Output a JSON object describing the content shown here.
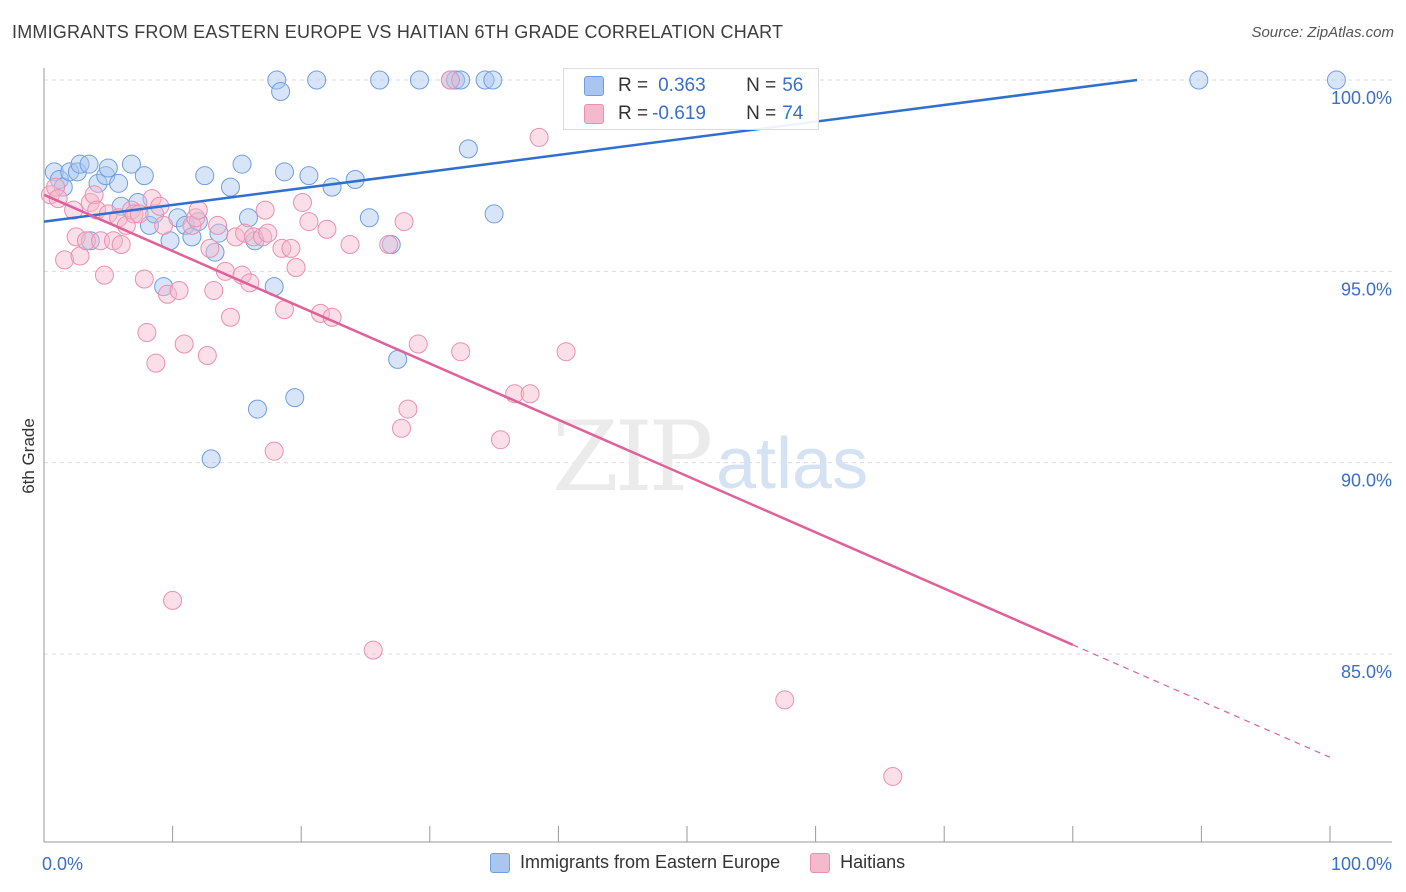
{
  "title": "IMMIGRANTS FROM EASTERN EUROPE VS HAITIAN 6TH GRADE CORRELATION CHART",
  "source": "Source: ZipAtlas.com",
  "watermark": {
    "zip": "ZIP",
    "atlas": "atlas"
  },
  "stats_box": {
    "rows": [
      {
        "r_label": "R = ",
        "r_value": "0.363",
        "n_label": "N = ",
        "n_value": "56",
        "color": "#a9c6f0"
      },
      {
        "r_label": "R = ",
        "r_value": "-0.619",
        "n_label": "N = ",
        "n_value": "74",
        "color": "#f5b9cc"
      }
    ]
  },
  "legend": [
    {
      "label": "Immigrants from Eastern Europe",
      "color": "#a9c6f0",
      "border": "#6f9ee0"
    },
    {
      "label": "Haitians",
      "color": "#f5b9cc",
      "border": "#ec8fae"
    }
  ],
  "chart_data": {
    "type": "scatter",
    "title": "IMMIGRANTS FROM EASTERN EUROPE VS HAITIAN 6TH GRADE CORRELATION CHART",
    "xlabel": "",
    "ylabel": "6th Grade",
    "xlim": [
      0,
      100
    ],
    "ylim": [
      80.5,
      100.3
    ],
    "x_tick_labels": [
      "0.0%",
      "100.0%"
    ],
    "y_ticks": [
      {
        "value": 100,
        "label": "100.0%"
      },
      {
        "value": 95,
        "label": "95.0%"
      },
      {
        "value": 90,
        "label": "90.0%"
      },
      {
        "value": 85,
        "label": "85.0%"
      }
    ],
    "series": [
      {
        "name": "Immigrants from Eastern Europe",
        "color": "#a9c6f0",
        "stroke": "#6f9ee0",
        "line_color": "#2f6fd0",
        "trend": {
          "x0": 0,
          "y0": 96.3,
          "x1": 85,
          "y1": 100.0,
          "dashed_from": null
        },
        "points": [
          [
            0.8,
            97.6
          ],
          [
            1.2,
            97.4
          ],
          [
            1.5,
            97.2
          ],
          [
            2,
            97.6
          ],
          [
            2.6,
            97.6
          ],
          [
            2.8,
            97.8
          ],
          [
            3.5,
            97.8
          ],
          [
            3.6,
            95.8
          ],
          [
            4.2,
            97.3
          ],
          [
            4.8,
            97.5
          ],
          [
            5,
            97.7
          ],
          [
            5.8,
            97.3
          ],
          [
            6,
            96.7
          ],
          [
            6.8,
            97.8
          ],
          [
            7.3,
            96.8
          ],
          [
            7.8,
            97.5
          ],
          [
            8.2,
            96.2
          ],
          [
            8.6,
            96.5
          ],
          [
            9.3,
            94.6
          ],
          [
            9.8,
            95.8
          ],
          [
            10.4,
            96.4
          ],
          [
            11,
            96.2
          ],
          [
            11.5,
            95.9
          ],
          [
            12.0,
            96.3
          ],
          [
            12.5,
            97.5
          ],
          [
            13.0,
            90.1
          ],
          [
            13.3,
            95.5
          ],
          [
            13.6,
            96.0
          ],
          [
            14.5,
            97.2
          ],
          [
            15.4,
            97.8
          ],
          [
            15.9,
            96.4
          ],
          [
            16.4,
            95.8
          ],
          [
            16.6,
            91.4
          ],
          [
            17.9,
            94.6
          ],
          [
            18.1,
            100
          ],
          [
            18.4,
            99.7
          ],
          [
            18.7,
            97.6
          ],
          [
            19.5,
            91.7
          ],
          [
            20.6,
            97.5
          ],
          [
            21.2,
            100
          ],
          [
            22.4,
            97.2
          ],
          [
            24.2,
            97.4
          ],
          [
            25.3,
            96.4
          ],
          [
            26.1,
            100
          ],
          [
            27,
            95.7
          ],
          [
            27.5,
            92.7
          ],
          [
            29.2,
            100
          ],
          [
            31.6,
            100
          ],
          [
            32.0,
            100
          ],
          [
            32.4,
            100
          ],
          [
            33,
            98.2
          ],
          [
            34.3,
            100
          ],
          [
            34.9,
            100
          ],
          [
            35,
            96.5
          ],
          [
            89.8,
            100
          ],
          [
            100.5,
            100
          ]
        ]
      },
      {
        "name": "Haitians",
        "color": "#f5b9cc",
        "stroke": "#ec8fae",
        "line_color": "#e0609a",
        "trend": {
          "x0": 0,
          "y0": 97.0,
          "x1": 100,
          "y1": 82.3,
          "dashed_from": 80
        },
        "points": [
          [
            0.5,
            97.0
          ],
          [
            0.9,
            97.2
          ],
          [
            1.1,
            96.9
          ],
          [
            1.6,
            95.3
          ],
          [
            2.3,
            96.6
          ],
          [
            2.5,
            95.9
          ],
          [
            2.8,
            95.4
          ],
          [
            3.3,
            95.8
          ],
          [
            3.6,
            96.8
          ],
          [
            3.9,
            97.0
          ],
          [
            4.1,
            96.6
          ],
          [
            4.4,
            95.8
          ],
          [
            4.7,
            94.9
          ],
          [
            5,
            96.5
          ],
          [
            5.4,
            95.8
          ],
          [
            5.8,
            96.4
          ],
          [
            6,
            95.7
          ],
          [
            6.4,
            96.2
          ],
          [
            6.8,
            96.6
          ],
          [
            7.0,
            96.5
          ],
          [
            7.4,
            96.5
          ],
          [
            7.8,
            94.8
          ],
          [
            8.0,
            93.4
          ],
          [
            8.4,
            96.9
          ],
          [
            8.7,
            92.6
          ],
          [
            9.3,
            96.2
          ],
          [
            9.6,
            94.4
          ],
          [
            10,
            86.4
          ],
          [
            10.5,
            94.5
          ],
          [
            10.9,
            93.1
          ],
          [
            11.5,
            96.2
          ],
          [
            11.8,
            96.4
          ],
          [
            12.0,
            96.6
          ],
          [
            12.7,
            92.8
          ],
          [
            12.9,
            95.6
          ],
          [
            13.2,
            94.5
          ],
          [
            13.5,
            96.2
          ],
          [
            14.1,
            95.0
          ],
          [
            14.5,
            93.8
          ],
          [
            14.9,
            95.9
          ],
          [
            15.4,
            94.9
          ],
          [
            15.6,
            96.0
          ],
          [
            16.0,
            94.7
          ],
          [
            16.3,
            95.9
          ],
          [
            17.0,
            95.9
          ],
          [
            17.2,
            96.6
          ],
          [
            17.4,
            96.0
          ],
          [
            17.9,
            90.3
          ],
          [
            18.5,
            95.6
          ],
          [
            19.2,
            95.6
          ],
          [
            19.6,
            95.1
          ],
          [
            20.1,
            96.8
          ],
          [
            20.6,
            96.3
          ],
          [
            21.5,
            93.9
          ],
          [
            22.0,
            96.1
          ],
          [
            22.4,
            93.8
          ],
          [
            25.6,
            85.1
          ],
          [
            26.8,
            95.7
          ],
          [
            27.8,
            90.9
          ],
          [
            28.3,
            91.4
          ],
          [
            29.1,
            93.1
          ],
          [
            31.6,
            100
          ],
          [
            32.4,
            92.9
          ],
          [
            35.5,
            90.6
          ],
          [
            36.6,
            91.8
          ],
          [
            37.8,
            91.8
          ],
          [
            38.5,
            98.5
          ],
          [
            40.6,
            92.9
          ],
          [
            57.6,
            83.8
          ],
          [
            66.0,
            81.8
          ],
          [
            28.0,
            96.3
          ],
          [
            23.8,
            95.7
          ],
          [
            9.0,
            96.7
          ],
          [
            18.7,
            94.0
          ]
        ]
      }
    ]
  }
}
